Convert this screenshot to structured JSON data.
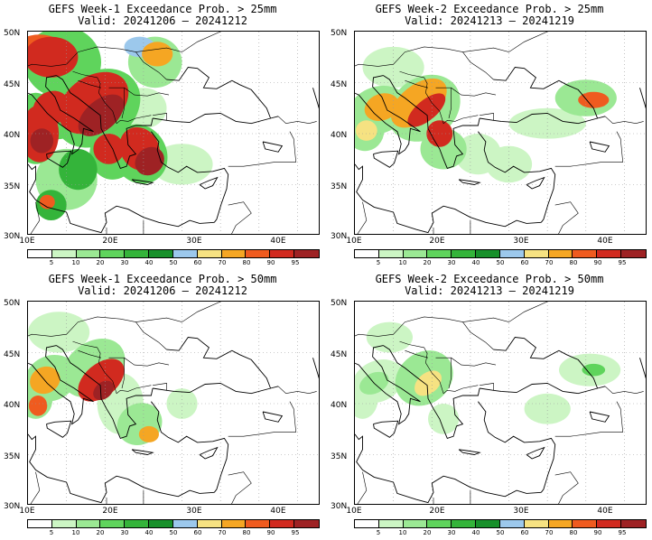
{
  "panels": [
    {
      "title_line1": "GEFS Week-1 Exceedance Prob. > 25mm",
      "title_line2": "Valid: 20241206 – 20241212",
      "intensity": "high"
    },
    {
      "title_line1": "GEFS Week-2 Exceedance Prob. > 25mm",
      "title_line2": "Valid: 20241213 – 20241219",
      "intensity": "med"
    },
    {
      "title_line1": "GEFS Week-1 Exceedance Prob. > 50mm",
      "title_line2": "Valid: 20241206 – 20241212",
      "intensity": "medhigh"
    },
    {
      "title_line1": "GEFS Week-2 Exceedance Prob. > 50mm",
      "title_line2": "Valid: 20241213 – 20241219",
      "intensity": "low"
    }
  ],
  "lat_labels": [
    "50N",
    "45N",
    "40N",
    "35N",
    "30N"
  ],
  "lon_labels": [
    "10E",
    "20E",
    "30E",
    "40E"
  ],
  "colorbar": {
    "labels": [
      "5",
      "10",
      "20",
      "30",
      "40",
      "50",
      "60",
      "70",
      "80",
      "90",
      "95"
    ],
    "colors": [
      "#ffffff",
      "#ccf5c4",
      "#9be894",
      "#5fd45c",
      "#34b43a",
      "#17902a",
      "#9cc8ec",
      "#f6e282",
      "#f5a623",
      "#ef5b1f",
      "#d12a1f",
      "#9e2224"
    ]
  }
}
